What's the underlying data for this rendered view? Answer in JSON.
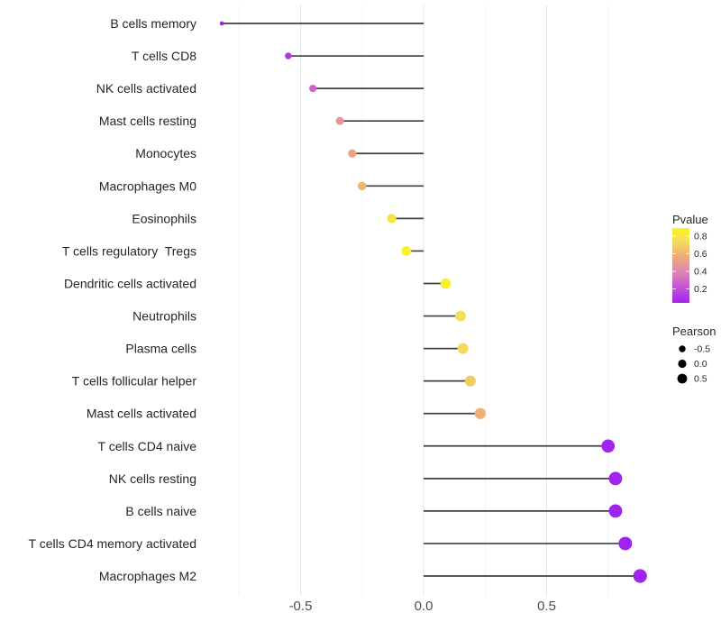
{
  "chart_data": {
    "type": "lollipop",
    "title": "",
    "xlabel": "",
    "ylabel": "",
    "x_tick_labels": [
      "-0.5",
      "0.0",
      "0.5"
    ],
    "x_tick_values": [
      -0.5,
      0.0,
      0.5
    ],
    "grid_major": [
      -0.5,
      0.0,
      0.5
    ],
    "grid_minor": [
      -0.75,
      -0.25,
      0.25,
      0.75
    ],
    "xlim": [
      -0.91,
      0.93
    ],
    "rows": [
      {
        "label": "B cells memory",
        "pearson": -0.82,
        "pvalue": 0.02
      },
      {
        "label": "T cells CD8",
        "pearson": -0.55,
        "pvalue": 0.12
      },
      {
        "label": "NK cells activated",
        "pearson": -0.45,
        "pvalue": 0.28
      },
      {
        "label": "Mast cells resting",
        "pearson": -0.34,
        "pvalue": 0.48
      },
      {
        "label": "Monocytes",
        "pearson": -0.29,
        "pvalue": 0.55
      },
      {
        "label": "Macrophages M0",
        "pearson": -0.25,
        "pvalue": 0.62
      },
      {
        "label": "Eosinophils",
        "pearson": -0.13,
        "pvalue": 0.8
      },
      {
        "label": "T cells regulatory  Tregs",
        "pearson": -0.07,
        "pvalue": 0.9
      },
      {
        "label": "Dendritic cells activated",
        "pearson": 0.09,
        "pvalue": 0.88
      },
      {
        "label": "Neutrophils",
        "pearson": 0.15,
        "pvalue": 0.78
      },
      {
        "label": "Plasma cells",
        "pearson": 0.16,
        "pvalue": 0.75
      },
      {
        "label": "T cells follicular helper",
        "pearson": 0.19,
        "pvalue": 0.7
      },
      {
        "label": "Mast cells activated",
        "pearson": 0.23,
        "pvalue": 0.6
      },
      {
        "label": "T cells CD4 naive",
        "pearson": 0.75,
        "pvalue": 0.02
      },
      {
        "label": "NK cells resting",
        "pearson": 0.78,
        "pvalue": 0.02
      },
      {
        "label": "B cells naive",
        "pearson": 0.78,
        "pvalue": 0.02
      },
      {
        "label": "T cells CD4 memory activated",
        "pearson": 0.82,
        "pvalue": 0.01
      },
      {
        "label": "Macrophages M2",
        "pearson": 0.88,
        "pvalue": 0.01
      }
    ],
    "legend_color": {
      "title": "Pvalue",
      "tick_labels": [
        "0.8",
        "0.6",
        "0.4",
        "0.2"
      ],
      "tick_values": [
        0.8,
        0.6,
        0.4,
        0.2
      ],
      "position": "right"
    },
    "legend_size": {
      "title": "Pearson",
      "items": [
        {
          "label": "-0.5",
          "value": -0.5
        },
        {
          "label": "0.0",
          "value": 0.0
        },
        {
          "label": "0.5",
          "value": 0.5
        }
      ]
    }
  },
  "colors": {
    "background": "#ffffff",
    "stem": "#404040",
    "grid_major": "#e4e4e4",
    "grid_minor": "#f2f2f2",
    "axis_tick_text": "#4d4d4d",
    "category_text": "#262626",
    "legend_text": "#262626",
    "size_legend_dot": "#000000",
    "pvalue_gradient": [
      "#FAF51B",
      "#F5DC5C",
      "#EFAB78",
      "#E089AE",
      "#CB5BD2",
      "#A023EE"
    ],
    "pvalue_gradient_pos": [
      0,
      0.18,
      0.38,
      0.57,
      0.76,
      1
    ],
    "pvalue_domain_top": 0.92,
    "pvalue_domain_bottom": 0.04
  }
}
